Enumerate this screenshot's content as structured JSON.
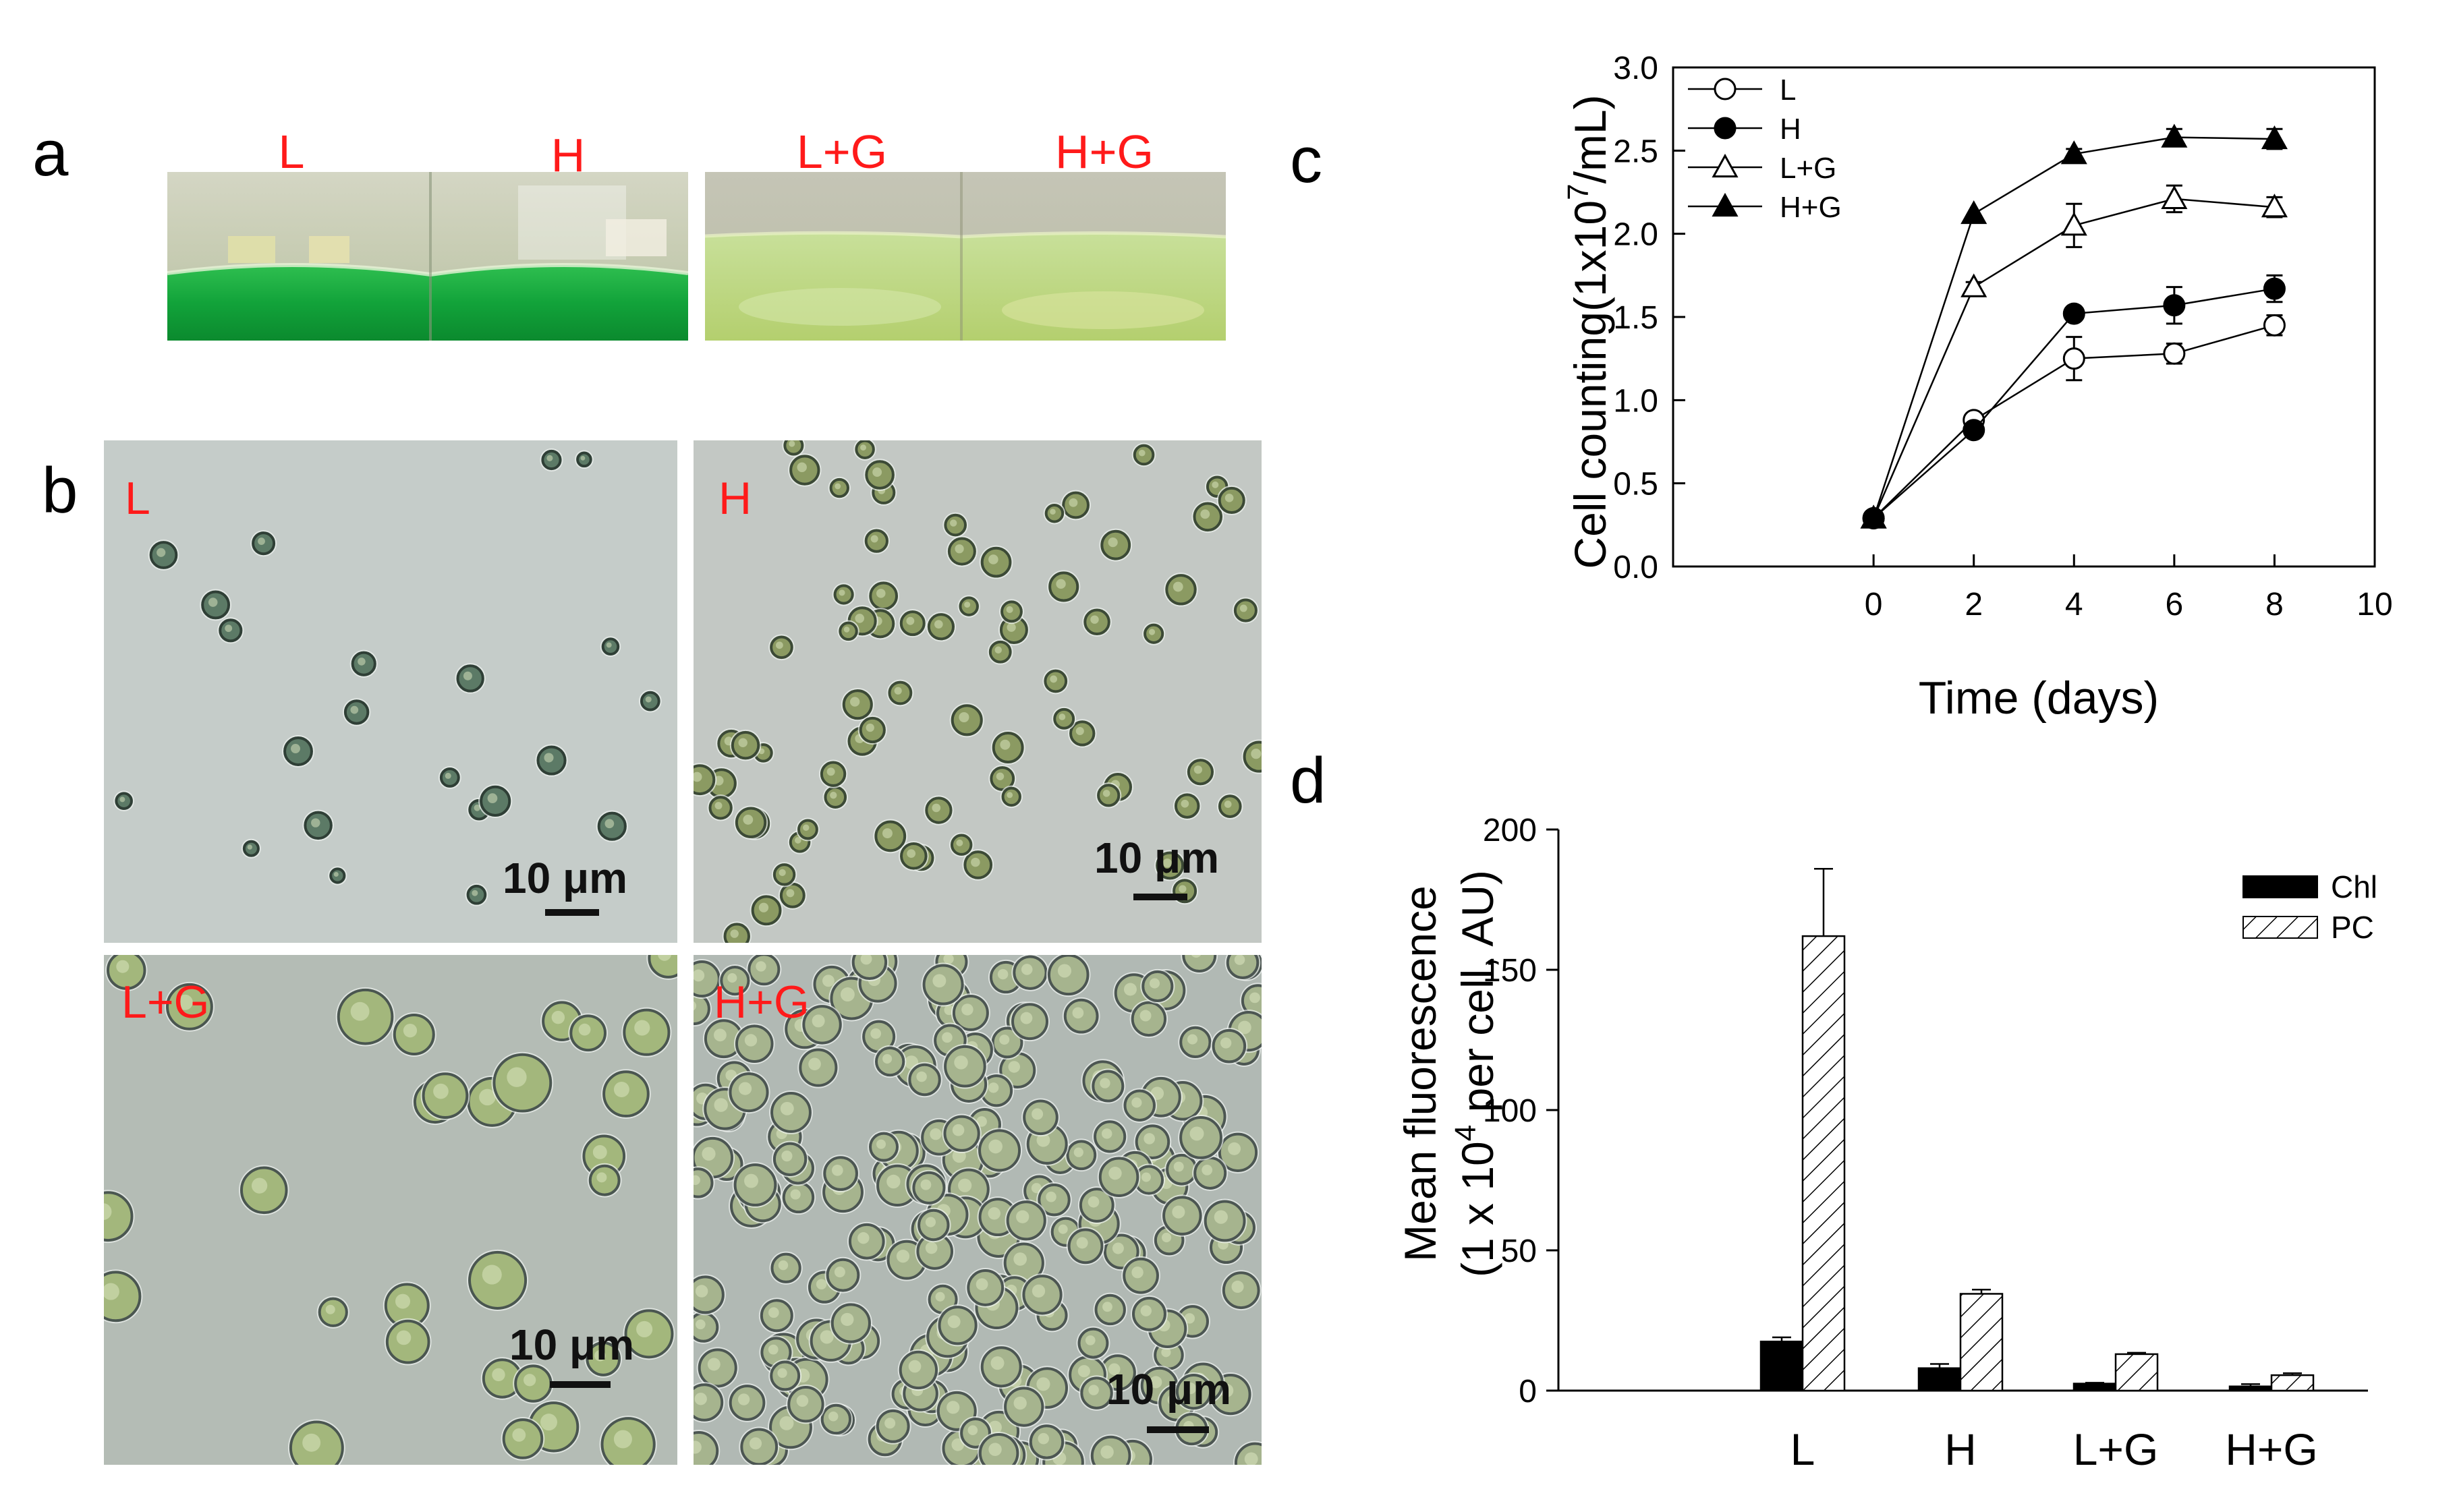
{
  "panel_a": {
    "letter": "a",
    "flask_labels": [
      "L",
      "H",
      "L+G",
      "H+G"
    ]
  },
  "panel_b": {
    "letter": "b",
    "labels": [
      "L",
      "H",
      "L+G",
      "H+G"
    ],
    "scale_bar": "10 μm"
  },
  "colors": {
    "label_red": "#ff1a1a",
    "deep_green": "#12a33a",
    "pale_green": "#c4dc78",
    "micro_background_1": "#c5ccc9",
    "micro_background_2": "#b1b9b4"
  },
  "chart_data": [
    {
      "panel": "c",
      "type": "line",
      "xlabel": "Time (days)",
      "ylabel": "Cell counting(1x10^7/mL)",
      "ylabel_parts": [
        "Cell counting(1x10",
        "7",
        "/mL)"
      ],
      "xlim": [
        -4,
        10
      ],
      "ylim": [
        0,
        3.0
      ],
      "xticks": [
        "0",
        "2",
        "4",
        "6",
        "8",
        "10"
      ],
      "yticks": [
        "0.0",
        "0.5",
        "1.0",
        "1.5",
        "2.0",
        "2.5",
        "3.0"
      ],
      "legend_position": "top-left",
      "series": [
        {
          "name": "L",
          "marker": "open-circle",
          "x": [
            0,
            2,
            4,
            6,
            8
          ],
          "y": [
            0.29,
            0.88,
            1.25,
            1.28,
            1.45
          ],
          "err": [
            0.02,
            0.03,
            0.13,
            0.06,
            0.06
          ]
        },
        {
          "name": "H",
          "marker": "filled-circle",
          "x": [
            0,
            2,
            4,
            6,
            8
          ],
          "y": [
            0.29,
            0.82,
            1.52,
            1.57,
            1.67
          ],
          "err": [
            0.02,
            0.02,
            0.04,
            0.11,
            0.08
          ]
        },
        {
          "name": "L+G",
          "marker": "open-triangle",
          "x": [
            0,
            2,
            4,
            6,
            8
          ],
          "y": [
            0.29,
            1.68,
            2.05,
            2.21,
            2.16
          ],
          "err": [
            0.02,
            0.03,
            0.13,
            0.08,
            0.06
          ]
        },
        {
          "name": "H+G",
          "marker": "filled-triangle",
          "x": [
            0,
            2,
            4,
            6,
            8
          ],
          "y": [
            0.29,
            2.12,
            2.48,
            2.58,
            2.57
          ],
          "err": [
            0.02,
            0.02,
            0.03,
            0.05,
            0.06
          ]
        }
      ]
    },
    {
      "panel": "d",
      "type": "bar",
      "ylabel_line1": "Mean fluorescence",
      "ylabel_line2_parts": [
        "(1 x 10",
        "4",
        " per cell, AU)"
      ],
      "categories": [
        "L",
        "H",
        "L+G",
        "H+G"
      ],
      "ylim": [
        0,
        200
      ],
      "yticks": [
        "0",
        "50",
        "100",
        "150",
        "200"
      ],
      "legend_position": "top-right",
      "series": [
        {
          "name": "Chl",
          "fill": "solid-black",
          "values": [
            17.5,
            8,
            2.5,
            1.5
          ],
          "err": [
            1.5,
            1.5,
            0.3,
            0.8
          ]
        },
        {
          "name": "PC",
          "fill": "hatched",
          "values": [
            162,
            34.5,
            13,
            5.5
          ],
          "err": [
            24,
            1.5,
            0.5,
            0.7
          ]
        }
      ]
    }
  ]
}
